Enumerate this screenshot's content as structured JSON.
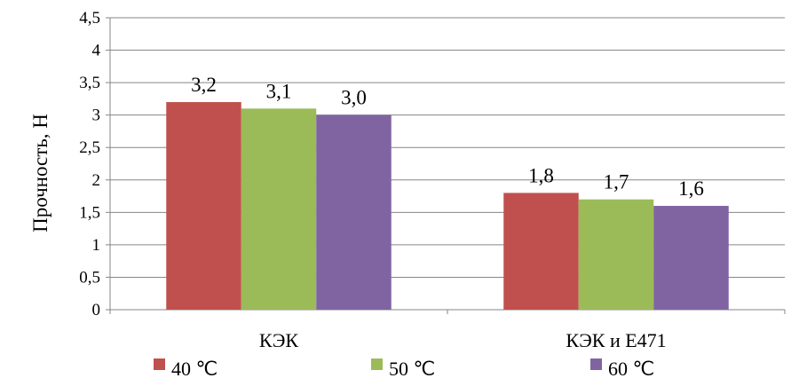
{
  "chart_data": {
    "type": "bar",
    "categories": [
      "КЭК",
      "КЭК и  Е471"
    ],
    "series": [
      {
        "name": "40  ℃",
        "color": "#C0504D",
        "values": [
          3.2,
          1.8
        ],
        "labels": [
          "3,2",
          "1,8"
        ]
      },
      {
        "name": "50  ℃",
        "color": "#9BBB59",
        "values": [
          3.1,
          1.7
        ],
        "labels": [
          "3,1",
          "1,7"
        ]
      },
      {
        "name": "60  ℃",
        "color": "#8064A2",
        "values": [
          3.0,
          1.6
        ],
        "labels": [
          "3,0",
          "1,6"
        ]
      }
    ],
    "ylabel": "Прочность, Н",
    "ylim": [
      0,
      4.5
    ],
    "yticks": [
      "0",
      "0,5",
      "1",
      "1,5",
      "2",
      "2,5",
      "3",
      "3,5",
      "4",
      "4,5"
    ],
    "grid": true,
    "legend": "bottom"
  }
}
